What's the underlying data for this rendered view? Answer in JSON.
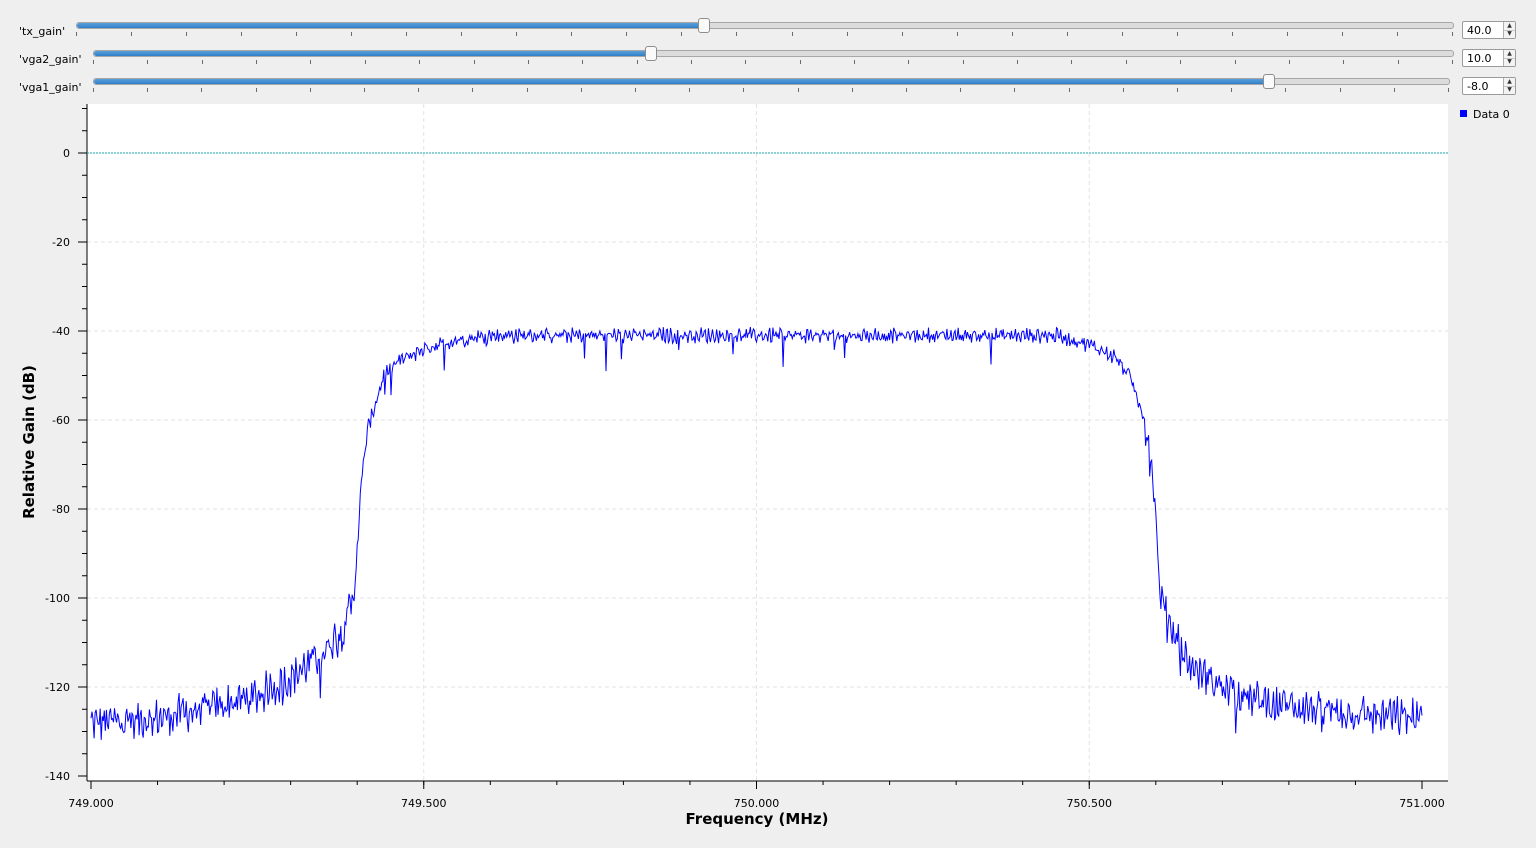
{
  "sliders": [
    {
      "label": "'tx_gain'",
      "value_text": "40.0",
      "fraction": 0.456
    },
    {
      "label": "'vga2_gain'",
      "value_text": "10.0",
      "fraction": 0.41
    },
    {
      "label": "'vga1_gain'",
      "value_text": "-8.0",
      "fraction": 0.867
    }
  ],
  "spin_icons": {
    "up": "arrow-up-icon",
    "down": "arrow-down-icon"
  },
  "colors": {
    "trace": "#0000ff",
    "reference_line": "#1aa8a8",
    "slider_fill": "#3b8ad4",
    "legend_marker": "#0000ff"
  },
  "legend": {
    "label": "Data 0",
    "placement": "top-right"
  },
  "chart_data": {
    "type": "line",
    "xlabel": "Frequency (MHz)",
    "ylabel": "Relative Gain (dB)",
    "xlim": [
      749.0,
      751.0
    ],
    "ylim": [
      -140,
      10
    ],
    "x_ticks": [
      "749.000",
      "749.500",
      "750.000",
      "750.500",
      "751.000"
    ],
    "y_ticks": [
      "0",
      "-20",
      "-40",
      "-60",
      "-80",
      "-100",
      "-120",
      "-140"
    ],
    "grid": true,
    "reference_line_y": 0,
    "series": [
      {
        "name": "Data 0",
        "x": [
          749.0,
          749.1,
          749.2,
          749.25,
          749.3,
          749.35,
          749.38,
          749.395,
          749.4,
          749.41,
          749.42,
          749.44,
          749.46,
          749.5,
          749.55,
          749.6,
          749.7,
          749.8,
          749.9,
          750.0,
          750.1,
          750.2,
          750.3,
          750.4,
          750.45,
          750.5,
          750.54,
          750.56,
          750.58,
          750.59,
          750.6,
          750.605,
          750.62,
          750.65,
          750.7,
          750.75,
          750.8,
          750.9,
          751.0
        ],
        "y": [
          -128,
          -127,
          -124,
          -122,
          -118,
          -112,
          -106,
          -100,
          -88,
          -68,
          -60,
          -50,
          -47,
          -44,
          -42,
          -41,
          -41,
          -41,
          -41,
          -41,
          -41,
          -41,
          -41,
          -41,
          -41,
          -43,
          -46,
          -50,
          -58,
          -66,
          -80,
          -98,
          -106,
          -115,
          -120,
          -123,
          -124,
          -126,
          -127
        ]
      }
    ]
  }
}
